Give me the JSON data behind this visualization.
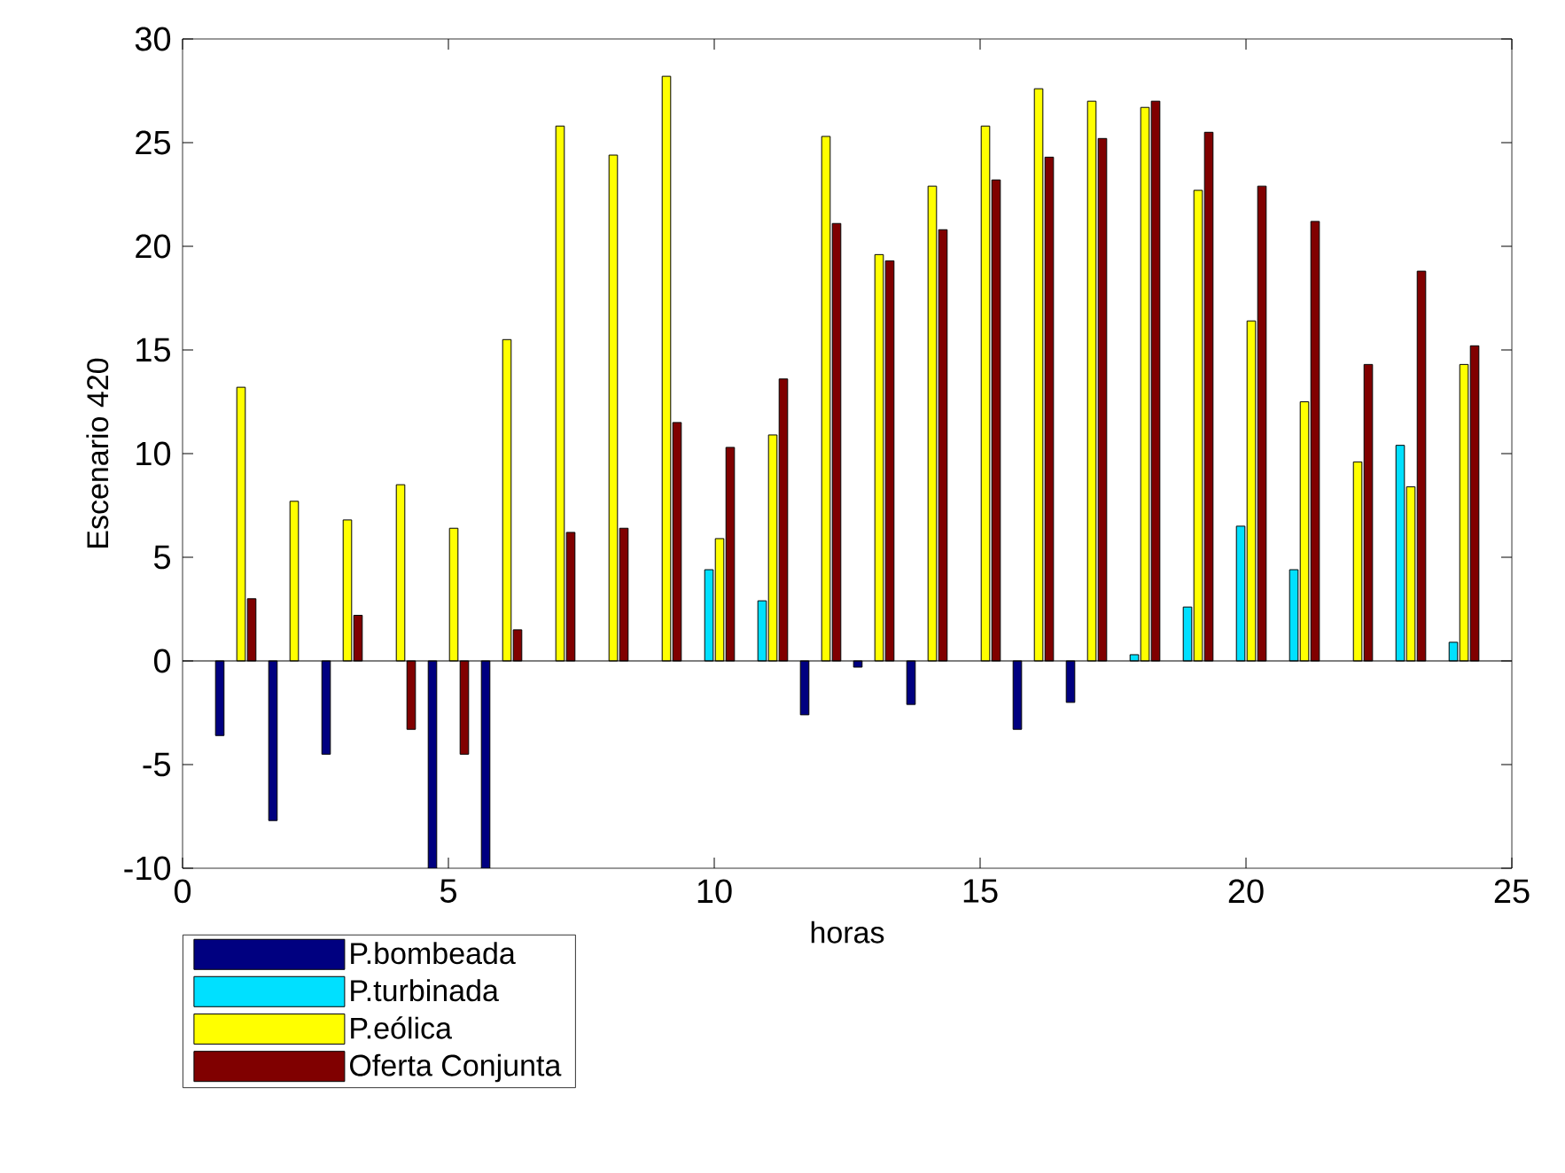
{
  "chart_data": {
    "type": "bar",
    "xlabel": "horas",
    "ylabel": "Escenario 420",
    "x": [
      1,
      2,
      3,
      4,
      5,
      6,
      7,
      8,
      9,
      10,
      11,
      12,
      13,
      14,
      15,
      16,
      17,
      18,
      19,
      20,
      21,
      22,
      23,
      24
    ],
    "series": [
      {
        "name": "P.bombeada",
        "color": "#000080",
        "values": [
          -3.6,
          -7.7,
          -4.5,
          0,
          -10,
          -10,
          0,
          0,
          0,
          0,
          0,
          -2.6,
          -0.3,
          -2.1,
          0,
          -3.3,
          -2.0,
          0,
          0,
          0,
          0,
          0,
          0,
          0
        ]
      },
      {
        "name": "P.turbinada",
        "color": "#00e0ff",
        "values": [
          0,
          0,
          0,
          0,
          0,
          0,
          0,
          0,
          0,
          4.4,
          2.9,
          0,
          0,
          0,
          0,
          0,
          0,
          0.3,
          2.6,
          6.5,
          4.4,
          0,
          10.4,
          0.9
        ]
      },
      {
        "name": "P.eólica",
        "color": "#ffff00",
        "values": [
          13.2,
          7.7,
          6.8,
          8.5,
          6.4,
          15.5,
          25.8,
          24.4,
          28.2,
          5.9,
          10.9,
          25.3,
          19.6,
          22.9,
          25.8,
          27.6,
          27.0,
          26.7,
          22.7,
          16.4,
          12.5,
          9.6,
          8.4,
          14.3
        ]
      },
      {
        "name": "Oferta Conjunta",
        "color": "#800000",
        "values": [
          3.0,
          0,
          2.2,
          -3.3,
          -4.5,
          1.5,
          6.2,
          6.4,
          11.5,
          10.3,
          13.6,
          21.1,
          19.3,
          20.8,
          23.2,
          24.3,
          25.2,
          27.0,
          25.5,
          22.9,
          21.2,
          14.3,
          18.8,
          15.2
        ]
      }
    ],
    "xlim": [
      0,
      25
    ],
    "xticks": [
      0,
      5,
      10,
      15,
      20,
      25
    ],
    "ylim": [
      -10,
      30
    ],
    "yticks": [
      -10,
      -5,
      0,
      5,
      10,
      15,
      20,
      25,
      30
    ],
    "ref_lines": [
      {
        "axis": "y",
        "value": 0,
        "color": "#000000"
      }
    ],
    "grid": false,
    "legend": "bottom left"
  }
}
